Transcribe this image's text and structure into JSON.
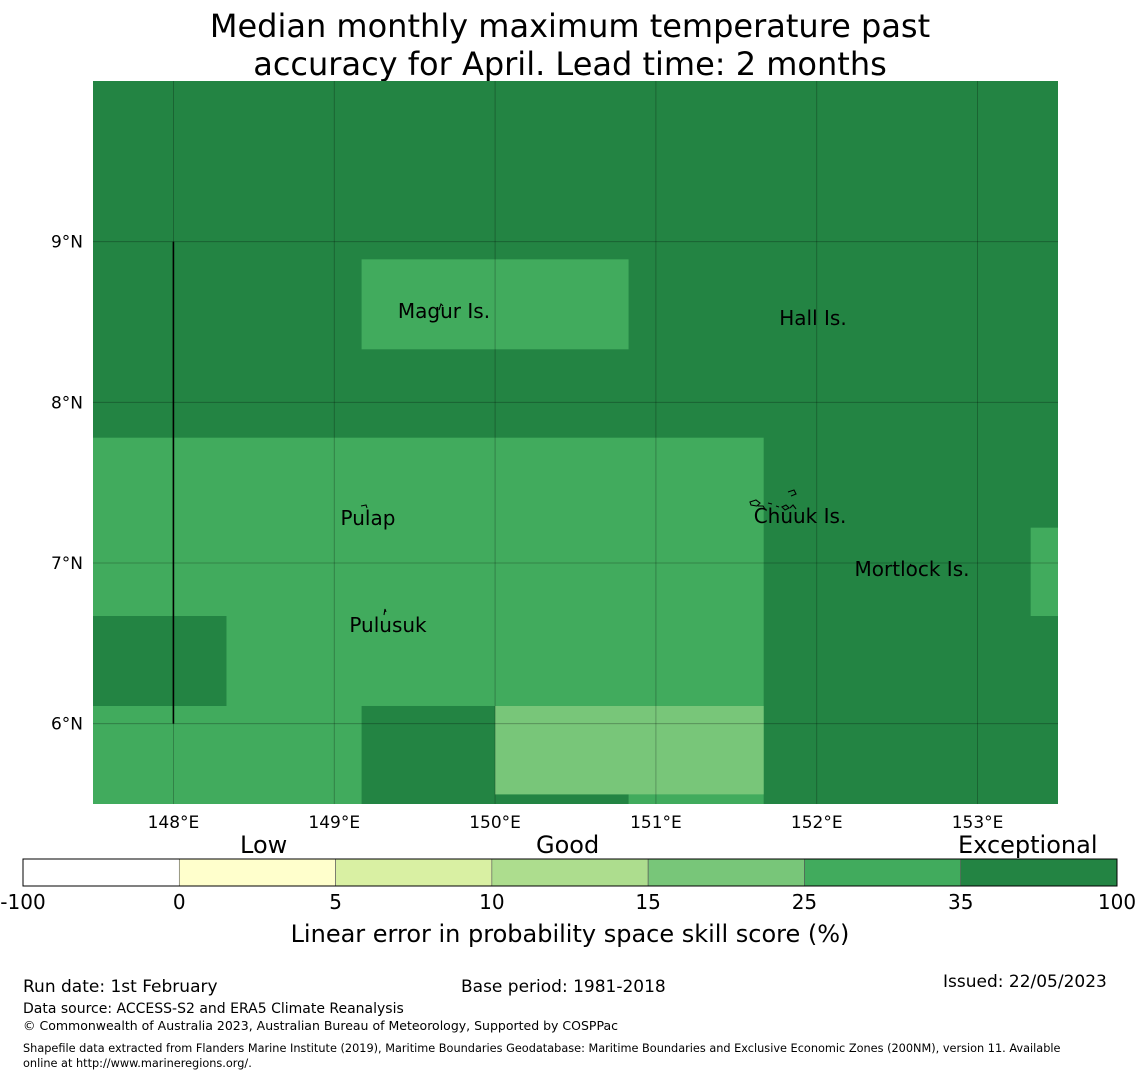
{
  "title": {
    "line1": "Median monthly maximum temperature past",
    "line2": "accuracy for April. Lead time: 2 months"
  },
  "map": {
    "lon_range": [
      147.5,
      153.5
    ],
    "lat_range": [
      5.5,
      10.0
    ],
    "lon_ticks": [
      {
        "value": 148,
        "label": "148°E"
      },
      {
        "value": 149,
        "label": "149°E"
      },
      {
        "value": 150,
        "label": "150°E"
      },
      {
        "value": 151,
        "label": "151°E"
      },
      {
        "value": 152,
        "label": "152°E"
      },
      {
        "value": 153,
        "label": "153°E"
      }
    ],
    "lat_ticks": [
      {
        "value": 9,
        "label": "9°N"
      },
      {
        "value": 8,
        "label": "8°N"
      },
      {
        "value": 7,
        "label": "7°N"
      },
      {
        "value": 6,
        "label": "6°N"
      }
    ],
    "background_category": "35-100",
    "skill_cells": [
      {
        "lon": [
          147.5,
          153.5
        ],
        "lat": [
          5.5,
          10.0
        ],
        "category": "35-100"
      },
      {
        "lon": [
          147.5,
          151.67
        ],
        "lat": [
          5.5,
          7.78
        ],
        "category": "25-35"
      },
      {
        "lon": [
          149.17,
          150.83
        ],
        "lat": [
          8.33,
          8.89
        ],
        "category": "25-35"
      },
      {
        "lon": [
          153.33,
          153.5
        ],
        "lat": [
          6.67,
          7.22
        ],
        "category": "25-35"
      },
      {
        "lon": [
          147.5,
          148.33
        ],
        "lat": [
          6.11,
          6.67
        ],
        "category": "35-100"
      },
      {
        "lon": [
          149.17,
          150.0
        ],
        "lat": [
          5.5,
          6.11
        ],
        "category": "35-100"
      },
      {
        "lon": [
          150.0,
          150.83
        ],
        "lat": [
          5.5,
          5.56
        ],
        "category": "35-100"
      },
      {
        "lon": [
          150.0,
          151.67
        ],
        "lat": [
          5.56,
          6.11
        ],
        "category": "15-25"
      }
    ],
    "boundary_line": {
      "lon": 148.0,
      "lat": [
        6.0,
        9.0
      ]
    },
    "islands": [
      {
        "name": "Magur Is.",
        "lon": 149.67,
        "lat": 8.55
      },
      {
        "name": "Hall Is.",
        "lon": 151.97,
        "lat": 8.5
      },
      {
        "name": "Pulap",
        "lon": 149.2,
        "lat": 7.25
      },
      {
        "name": "Chuuk Is.",
        "lon": 151.85,
        "lat": 7.27
      },
      {
        "name": "Mortlock Is.",
        "lon": 152.58,
        "lat": 6.93
      },
      {
        "name": "Pulusuk",
        "lon": 149.33,
        "lat": 6.59
      }
    ]
  },
  "colorbar": {
    "category_labels": {
      "low": "Low",
      "good": "Good",
      "exceptional": "Exceptional"
    },
    "bins": [
      {
        "from": "-100",
        "to": "0",
        "color": "#ffffff"
      },
      {
        "from": "0",
        "to": "5",
        "color": "#ffffcc"
      },
      {
        "from": "5",
        "to": "10",
        "color": "#d9f0a3"
      },
      {
        "from": "10",
        "to": "15",
        "color": "#addd8e"
      },
      {
        "from": "15",
        "to": "25",
        "color": "#78c679"
      },
      {
        "from": "25",
        "to": "35",
        "color": "#41ab5d"
      },
      {
        "from": "35",
        "to": "100",
        "color": "#238443"
      }
    ],
    "tick_labels": [
      "-100",
      "0",
      "5",
      "10",
      "15",
      "25",
      "35",
      "100"
    ],
    "title": "Linear error in probability space skill score (%)"
  },
  "footer": {
    "run_date": "Run date: 1st February",
    "base_period": "Base period: 1981-2018",
    "issued": "Issued: 22/05/2023",
    "data_source": "Data source: ACCESS-S2 and ERA5 Climate Reanalysis",
    "copyright": "© Commonwealth of Australia 2023, Australian Bureau of Meteorology, Supported by COSPPac",
    "shapefile_line1": "Shapefile data extracted from Flanders Marine Institute (2019), Maritime Boundaries Geodatabase: Maritime Boundaries and Exclusive Economic Zones (200NM), version 11. Available",
    "shapefile_line2": "online at http://www.marineregions.org/."
  }
}
